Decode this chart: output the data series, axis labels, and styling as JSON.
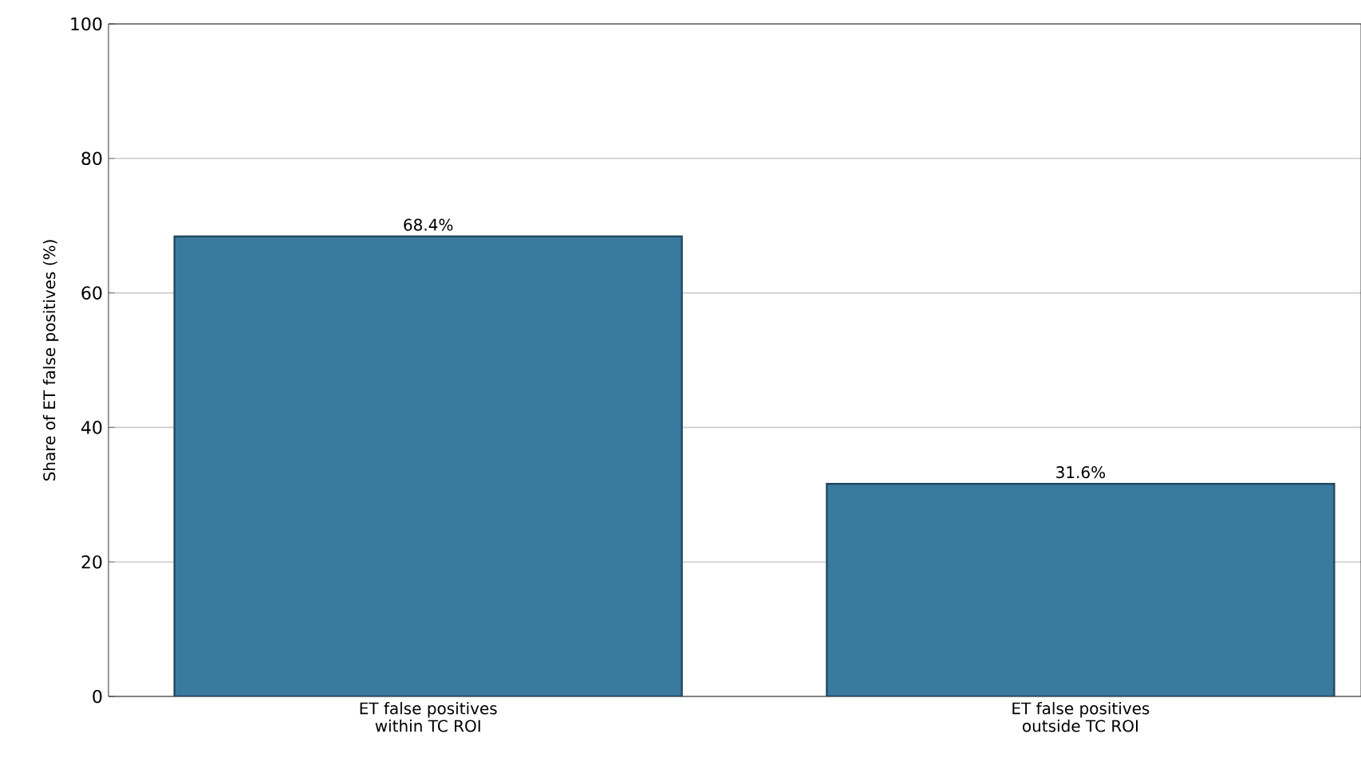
{
  "chart_data": {
    "type": "bar",
    "ylabel": "Share of ET false positives (%)",
    "categories": [
      "ET false positives\nwithin TC ROI",
      "ET false positives\noutside TC ROI"
    ],
    "values": [
      68.4,
      31.6
    ],
    "value_labels": [
      "68.4%",
      "31.6%"
    ],
    "color": "#3b7aa0",
    "ylim": [
      0,
      100
    ],
    "yticks": [
      0,
      20,
      40,
      60,
      80,
      100
    ],
    "grid": "y"
  }
}
